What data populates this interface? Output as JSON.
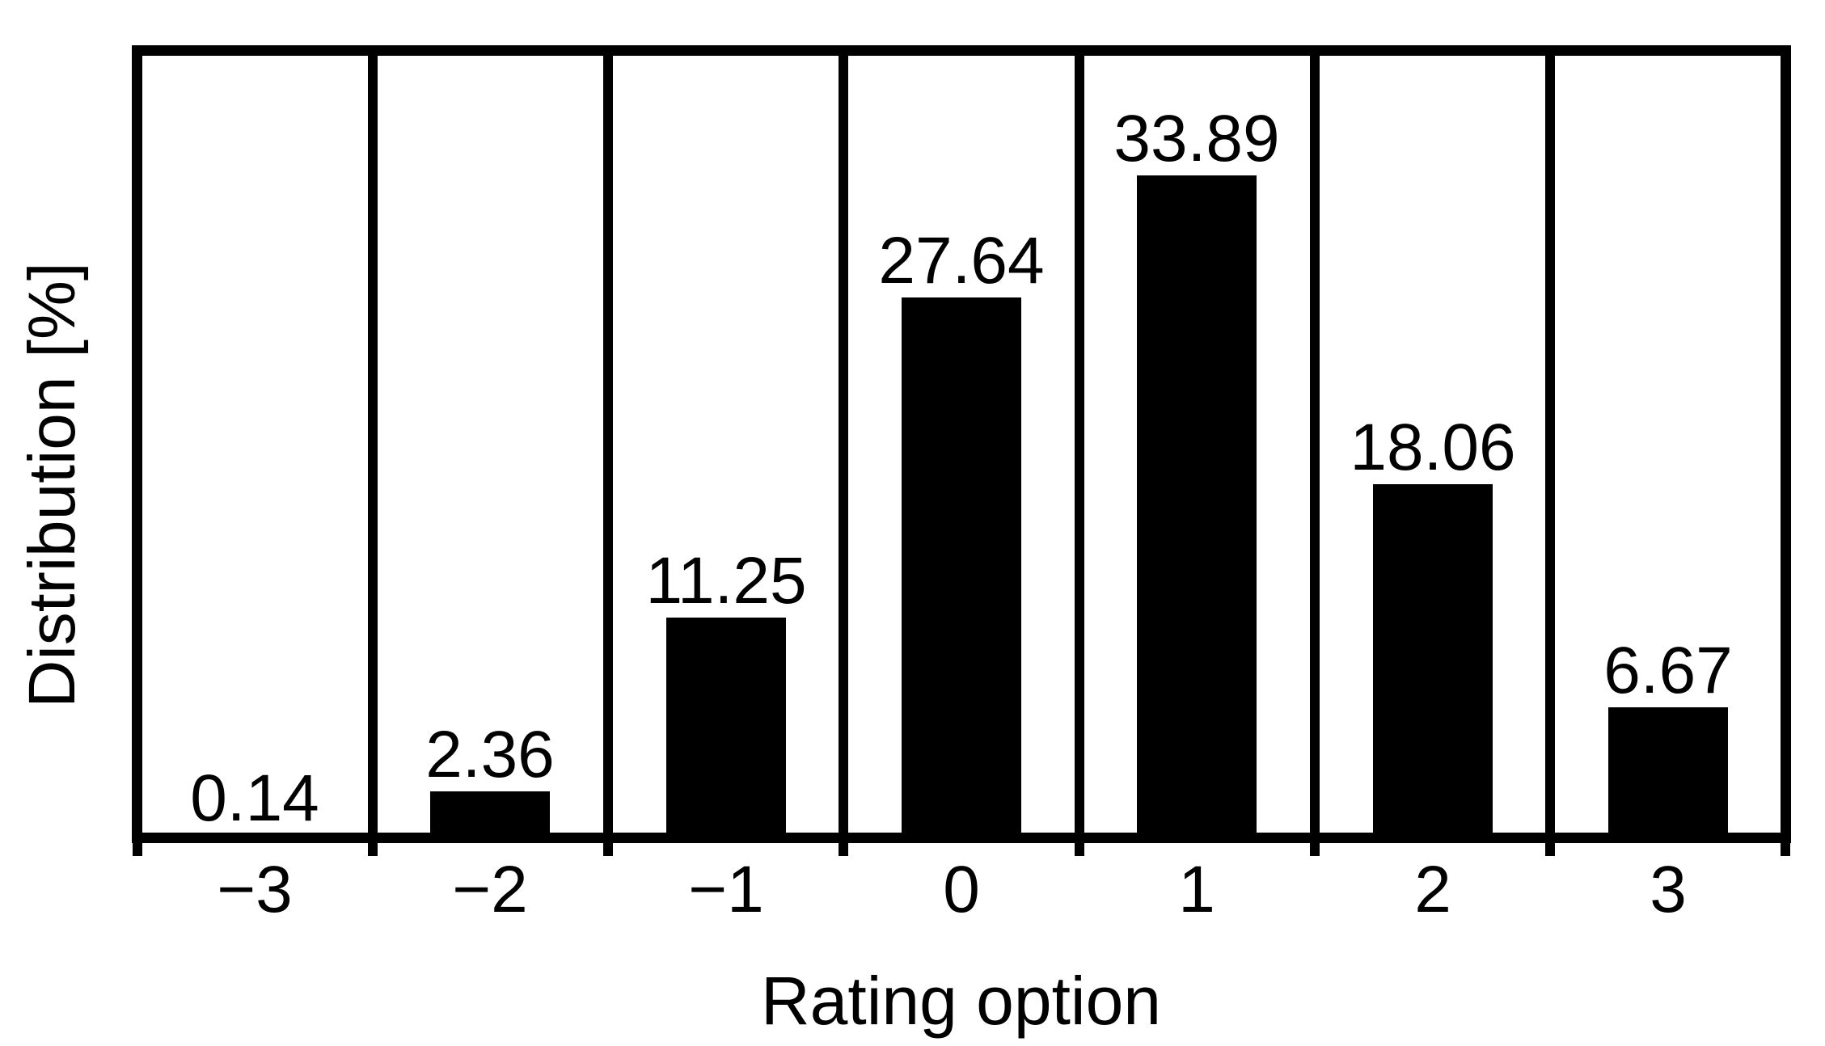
{
  "chart_data": {
    "type": "bar",
    "title": "",
    "xlabel": "Rating option",
    "ylabel": "Distribution [%]",
    "categories": [
      "−3",
      "−2",
      "−1",
      "0",
      "1",
      "2",
      "3"
    ],
    "values": [
      0.14,
      2.36,
      11.25,
      27.64,
      33.89,
      18.06,
      6.67
    ],
    "bar_labels": [
      "0.14",
      "2.36",
      "11.25",
      "27.64",
      "33.89",
      "18.06",
      "6.67"
    ],
    "ylim": [
      0,
      40
    ],
    "y_ticks_visible": false,
    "grid": "vertical-category-dividers",
    "legend": "none",
    "bar_color": "#000000",
    "line_color": "#000000",
    "background_color": "#ffffff",
    "text_color": "#000000"
  }
}
